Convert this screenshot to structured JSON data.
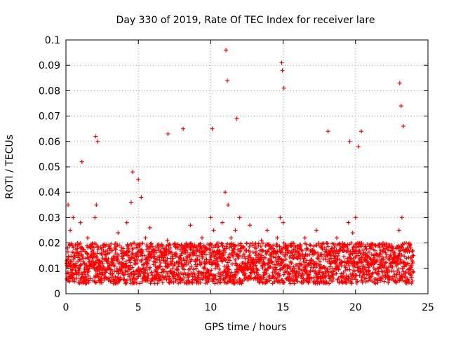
{
  "chart_data": {
    "type": "scatter",
    "title": "Day 330 of 2019, Rate Of TEC Index for receiver lare",
    "xlabel": "GPS time / hours",
    "ylabel": "ROTI / TECUs",
    "xlim": [
      0,
      25
    ],
    "ylim": [
      0,
      0.1
    ],
    "x_ticks": [
      "0",
      "5",
      "10",
      "15",
      "20",
      "25"
    ],
    "y_ticks": [
      "0",
      "0.01",
      "0.02",
      "0.03",
      "0.04",
      "0.05",
      "0.06",
      "0.07",
      "0.08",
      "0.09",
      "0.1"
    ],
    "grid": true,
    "legend": "none",
    "marker": "plus",
    "series": [
      {
        "color": "#ff0000",
        "x": [
          0.1,
          0.2,
          0.3,
          0.6,
          0.8,
          1.0,
          1.2,
          1.5,
          1.8,
          2.0,
          2.1,
          2.3,
          2.6,
          2.9,
          3.2,
          3.6,
          3.9,
          4.2,
          4.5,
          4.7,
          5.0,
          5.2,
          5.5,
          5.8,
          6.2,
          6.6,
          7.0,
          7.2,
          7.6,
          8.0,
          8.2,
          8.6,
          9.0,
          9.4,
          9.7,
          10.0,
          10.2,
          10.5,
          10.8,
          11.0,
          11.2,
          11.4,
          11.7,
          12.0,
          12.3,
          12.7,
          13.1,
          13.5,
          13.9,
          14.3,
          14.6,
          14.8,
          15.0,
          15.3,
          15.7,
          16.1,
          16.5,
          16.9,
          17.3,
          17.7,
          18.0,
          18.3,
          18.7,
          19.1,
          19.5,
          19.8,
          20.0,
          20.3,
          20.7,
          21.1,
          21.5,
          21.9,
          22.3,
          22.7,
          23.0,
          23.2,
          23.5,
          23.8,
          24.0,
          0.15,
          0.5,
          1.1,
          2.05,
          2.2,
          4.6,
          7.05,
          8.1,
          10.1,
          11.05,
          11.15,
          11.8,
          14.9,
          14.95,
          15.05,
          18.1,
          19.6,
          20.2,
          20.4,
          23.05,
          23.15,
          23.3
        ],
        "y": [
          0.018,
          0.012,
          0.025,
          0.015,
          0.02,
          0.028,
          0.014,
          0.022,
          0.016,
          0.03,
          0.035,
          0.013,
          0.019,
          0.012,
          0.017,
          0.024,
          0.014,
          0.028,
          0.036,
          0.02,
          0.045,
          0.038,
          0.022,
          0.026,
          0.017,
          0.015,
          0.021,
          0.018,
          0.016,
          0.013,
          0.019,
          0.027,
          0.015,
          0.022,
          0.018,
          0.03,
          0.025,
          0.02,
          0.028,
          0.04,
          0.035,
          0.022,
          0.025,
          0.03,
          0.018,
          0.027,
          0.016,
          0.021,
          0.025,
          0.019,
          0.022,
          0.03,
          0.028,
          0.017,
          0.02,
          0.016,
          0.022,
          0.019,
          0.025,
          0.018,
          0.02,
          0.015,
          0.022,
          0.017,
          0.028,
          0.024,
          0.03,
          0.02,
          0.016,
          0.018,
          0.015,
          0.02,
          0.017,
          0.016,
          0.025,
          0.03,
          0.02,
          0.018,
          0.015,
          0.035,
          0.03,
          0.052,
          0.062,
          0.06,
          0.048,
          0.063,
          0.065,
          0.065,
          0.096,
          0.084,
          0.069,
          0.091,
          0.088,
          0.081,
          0.064,
          0.06,
          0.058,
          0.064,
          0.083,
          0.074,
          0.066
        ],
        "scatter_band": {
          "x_step_hours": 0.03,
          "y_min": 0.004,
          "y_max": 0.02
        }
      }
    ]
  }
}
